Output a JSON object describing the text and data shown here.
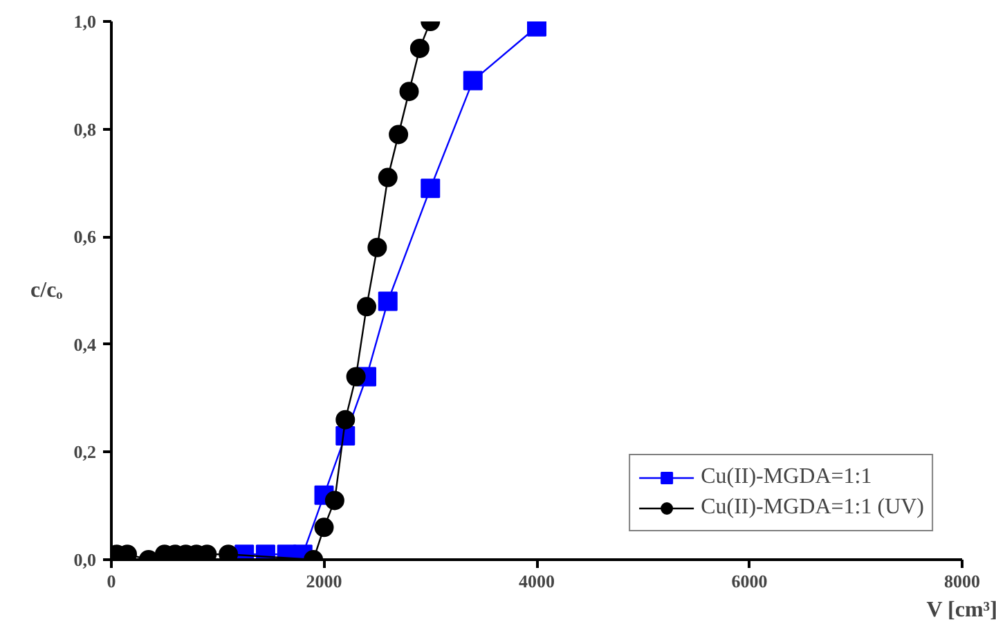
{
  "chart_data": {
    "type": "line",
    "xlabel": "V [cm³]",
    "ylabel": "c/cₒ",
    "xlim": [
      0,
      8000
    ],
    "xticks": [
      0,
      2000,
      4000,
      6000,
      8000
    ],
    "ylim": [
      0,
      1.0
    ],
    "yticks": [
      {
        "value": 0,
        "label": "0,0"
      },
      {
        "value": 0.2,
        "label": "0,2"
      },
      {
        "value": 0.4,
        "label": "0,4"
      },
      {
        "value": 0.6,
        "label": "0,6"
      },
      {
        "value": 0.8,
        "label": "0,8"
      },
      {
        "value": 1.0,
        "label": "1,0"
      }
    ],
    "grid": false,
    "legend": "bottom right",
    "series": [
      {
        "name": "Cu(II)-MGDA=1:1",
        "color": "#0000ff",
        "marker": "square",
        "x": [
          1250,
          1450,
          1650,
          1800,
          2000,
          2200,
          2400,
          2600,
          3000,
          3400,
          4000
        ],
        "values": [
          0.01,
          0.01,
          0.01,
          0.01,
          0.12,
          0.23,
          0.34,
          0.48,
          0.69,
          0.89,
          0.99
        ]
      },
      {
        "name": "Cu(II)-MGDA=1:1 (UV)",
        "color": "#000000",
        "marker": "circle",
        "x": [
          50,
          150,
          350,
          500,
          600,
          700,
          800,
          900,
          1100,
          1900,
          2000,
          2100,
          2200,
          2300,
          2400,
          2500,
          2600,
          2700,
          2800,
          2900,
          3000
        ],
        "values": [
          0.01,
          0.01,
          0.0,
          0.01,
          0.01,
          0.01,
          0.01,
          0.01,
          0.01,
          0.0,
          0.06,
          0.11,
          0.26,
          0.34,
          0.47,
          0.58,
          0.71,
          0.79,
          0.87,
          0.95,
          1.0
        ]
      }
    ]
  }
}
